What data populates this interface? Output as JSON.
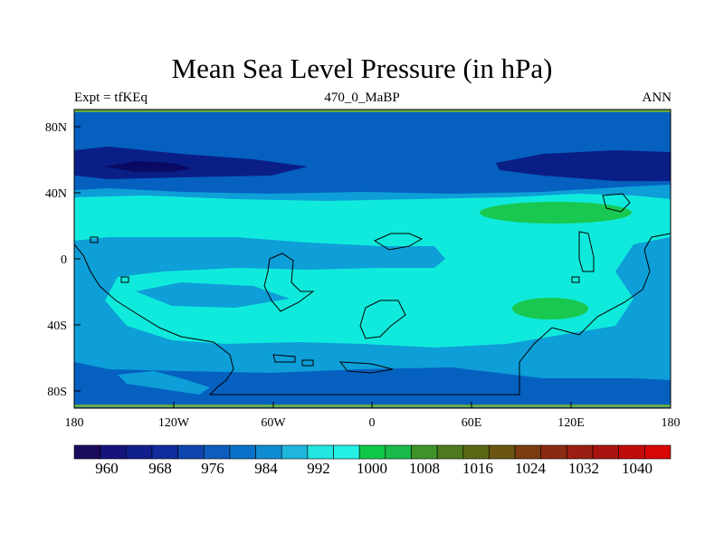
{
  "title": "Mean Sea Level Pressure (in hPa)",
  "subtitle_left": "Expt = tfKEq",
  "subtitle_center": "470_0_MaBP",
  "subtitle_right": "ANN",
  "axes": {
    "x_ticks": [
      "180",
      "120W",
      "60W",
      "0",
      "60E",
      "120E",
      "180"
    ],
    "y_ticks": [
      "80N",
      "40N",
      "0",
      "40S",
      "80S"
    ]
  },
  "colorbar": {
    "labels": [
      "960",
      "968",
      "976",
      "984",
      "992",
      "1000",
      "1008",
      "1016",
      "1024",
      "1032",
      "1040"
    ],
    "colors": [
      "#1a0a5e",
      "#13137a",
      "#111f8c",
      "#102c9e",
      "#0e46ae",
      "#0e5cbe",
      "#0a72c8",
      "#0f8cd2",
      "#1fb6dc",
      "#22e6e0",
      "#24f0e4",
      "#10c848",
      "#1ab94a",
      "#3e9428",
      "#4c7a1c",
      "#5a6814",
      "#6a5610",
      "#7a3c10",
      "#8a2a10",
      "#9a1e12",
      "#aa1410",
      "#c20c0c",
      "#d80606"
    ]
  },
  "map_colors": {
    "band_dark": "#0a1f86",
    "band_low": "#0560c0",
    "band_mid": "#0e9ed8",
    "band_high": "#10eadc",
    "band_green": "#18c850",
    "edge": "#66aa44"
  }
}
